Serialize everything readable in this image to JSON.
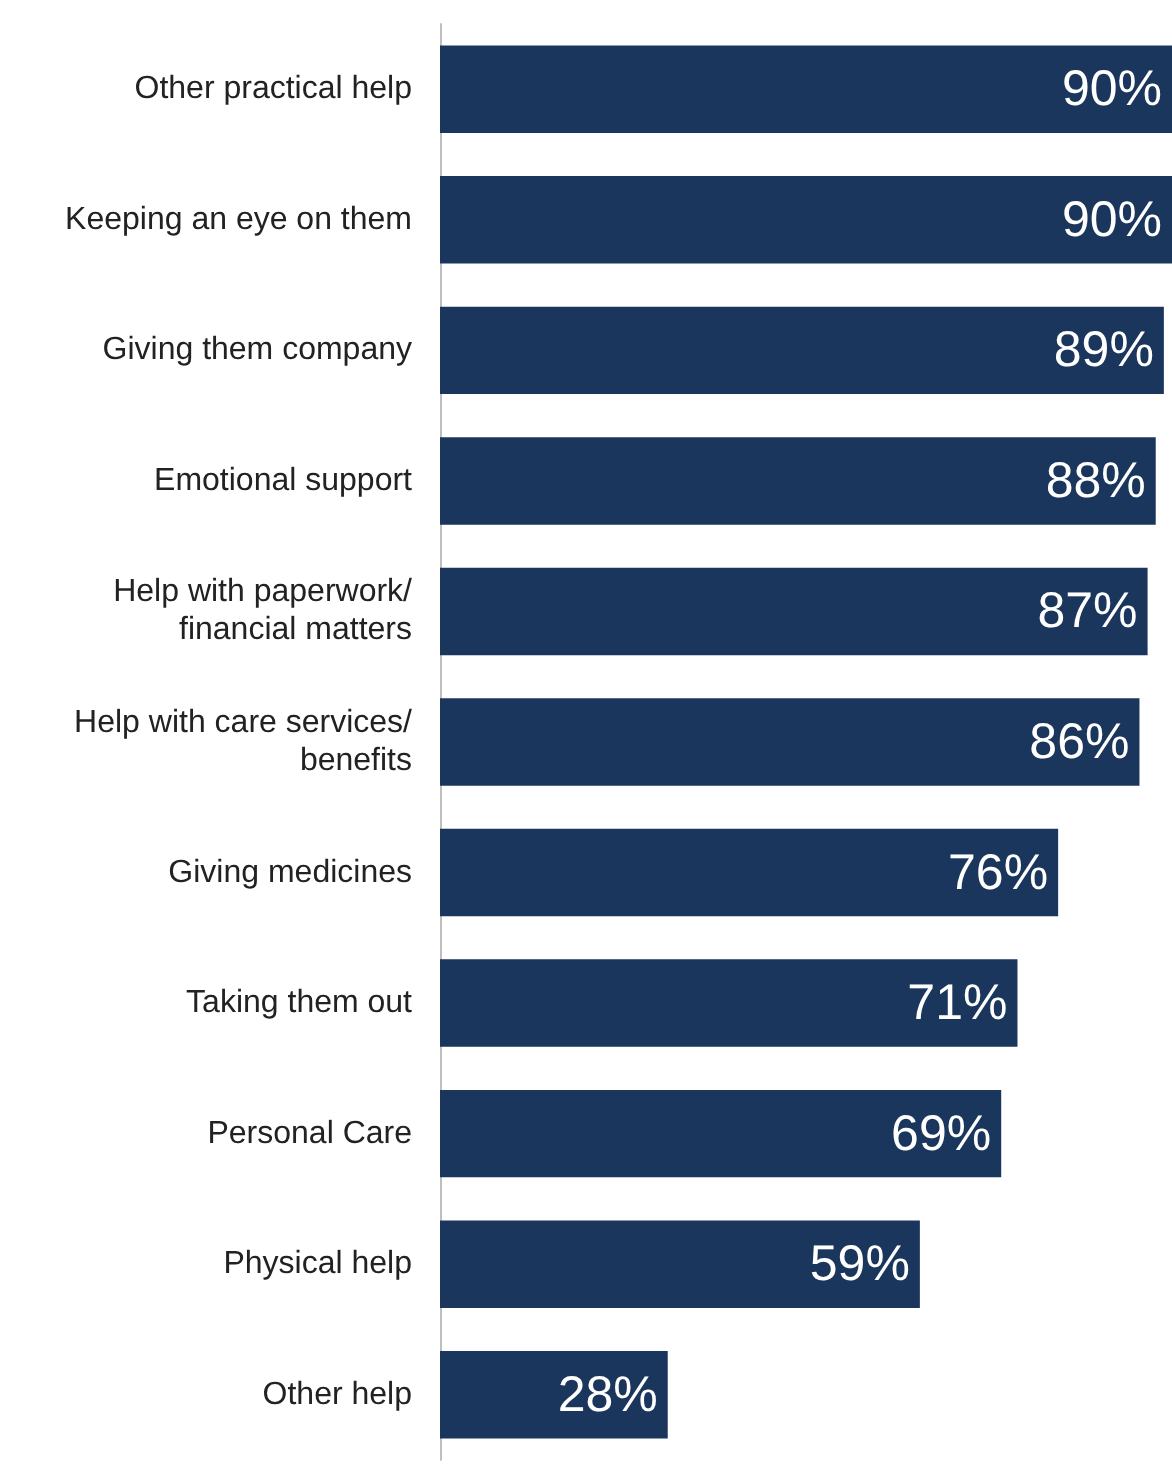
{
  "chart_data": {
    "type": "bar",
    "orientation": "horizontal",
    "categories": [
      "Other practical help",
      "Keeping an eye on them",
      "Giving them company",
      "Emotional support",
      "Help with paperwork/financial matters",
      "Help with care services/benefits",
      "Giving medicines",
      "Taking them out",
      "Personal Care",
      "Physical help",
      "Other help"
    ],
    "values": [
      90,
      90,
      89,
      88,
      87,
      86,
      76,
      71,
      69,
      59,
      28
    ],
    "value_labels": [
      "90%",
      "90%",
      "89%",
      "88%",
      "87%",
      "86%",
      "76%",
      "71%",
      "69%",
      "59%",
      "28%"
    ],
    "color": "#1b365d"
  }
}
